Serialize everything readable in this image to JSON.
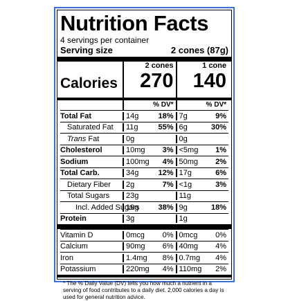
{
  "title": "Nutrition Facts",
  "servings_per_container": "4 servings per container",
  "serving_size_label": "Serving size",
  "serving_size_value": "2 cones (87g)",
  "columns": [
    {
      "header": "2 cones",
      "calories": "270"
    },
    {
      "header": "1 cone",
      "calories": "140"
    }
  ],
  "calories_label": "Calories",
  "dv_header": "% DV*",
  "nutrients": [
    {
      "name": "Total Fat",
      "a": "14g",
      "a_dv": "18%",
      "b": "7g",
      "b_dv": "9%"
    },
    {
      "name": "Saturated Fat",
      "a": "11g",
      "a_dv": "55%",
      "b": "6g",
      "b_dv": "30%"
    },
    {
      "name": "Trans",
      "suffix": " Fat",
      "a": "0g",
      "a_dv": "",
      "b": "0g",
      "b_dv": ""
    },
    {
      "name": "Cholesterol",
      "a": "10mg",
      "a_dv": "3%",
      "b": "<5mg",
      "b_dv": "1%"
    },
    {
      "name": "Sodium",
      "a": "100mg",
      "a_dv": "4%",
      "b": "50mg",
      "b_dv": "2%"
    },
    {
      "name": "Total Carb.",
      "a": "34g",
      "a_dv": "12%",
      "b": "17g",
      "b_dv": "6%"
    },
    {
      "name": "Dietary Fiber",
      "a": "2g",
      "a_dv": "7%",
      "b": "<1g",
      "b_dv": "3%"
    },
    {
      "name": "Total Sugars",
      "a": "23g",
      "a_dv": "",
      "b": "11g",
      "b_dv": ""
    },
    {
      "name": "Incl. Added Sugars",
      "a": "19g",
      "a_dv": "38%",
      "b": "9g",
      "b_dv": "18%"
    },
    {
      "name": "Protein",
      "a": "3g",
      "a_dv": "",
      "b": "1g",
      "b_dv": ""
    }
  ],
  "vitamins": [
    {
      "name": "Vitamin D",
      "a": "0mcg",
      "a_dv": "0%",
      "b": "0mcg",
      "b_dv": "0%"
    },
    {
      "name": "Calcium",
      "a": "90mg",
      "a_dv": "6%",
      "b": "40mg",
      "b_dv": "4%"
    },
    {
      "name": "Iron",
      "a": "1.4mg",
      "a_dv": "8%",
      "b": "0.7mg",
      "b_dv": "4%"
    },
    {
      "name": "Potassium",
      "a": "220mg",
      "a_dv": "4%",
      "b": "110mg",
      "b_dv": "2%"
    }
  ],
  "footnote": "* The % Daily Value (DV) tells you how much a nutrient in a serving of food contributes to a daily diet. 2,000 calories a day is used for general nutrition advice.",
  "colors": {
    "frame": "#3a6fd8",
    "ink": "#000000"
  }
}
